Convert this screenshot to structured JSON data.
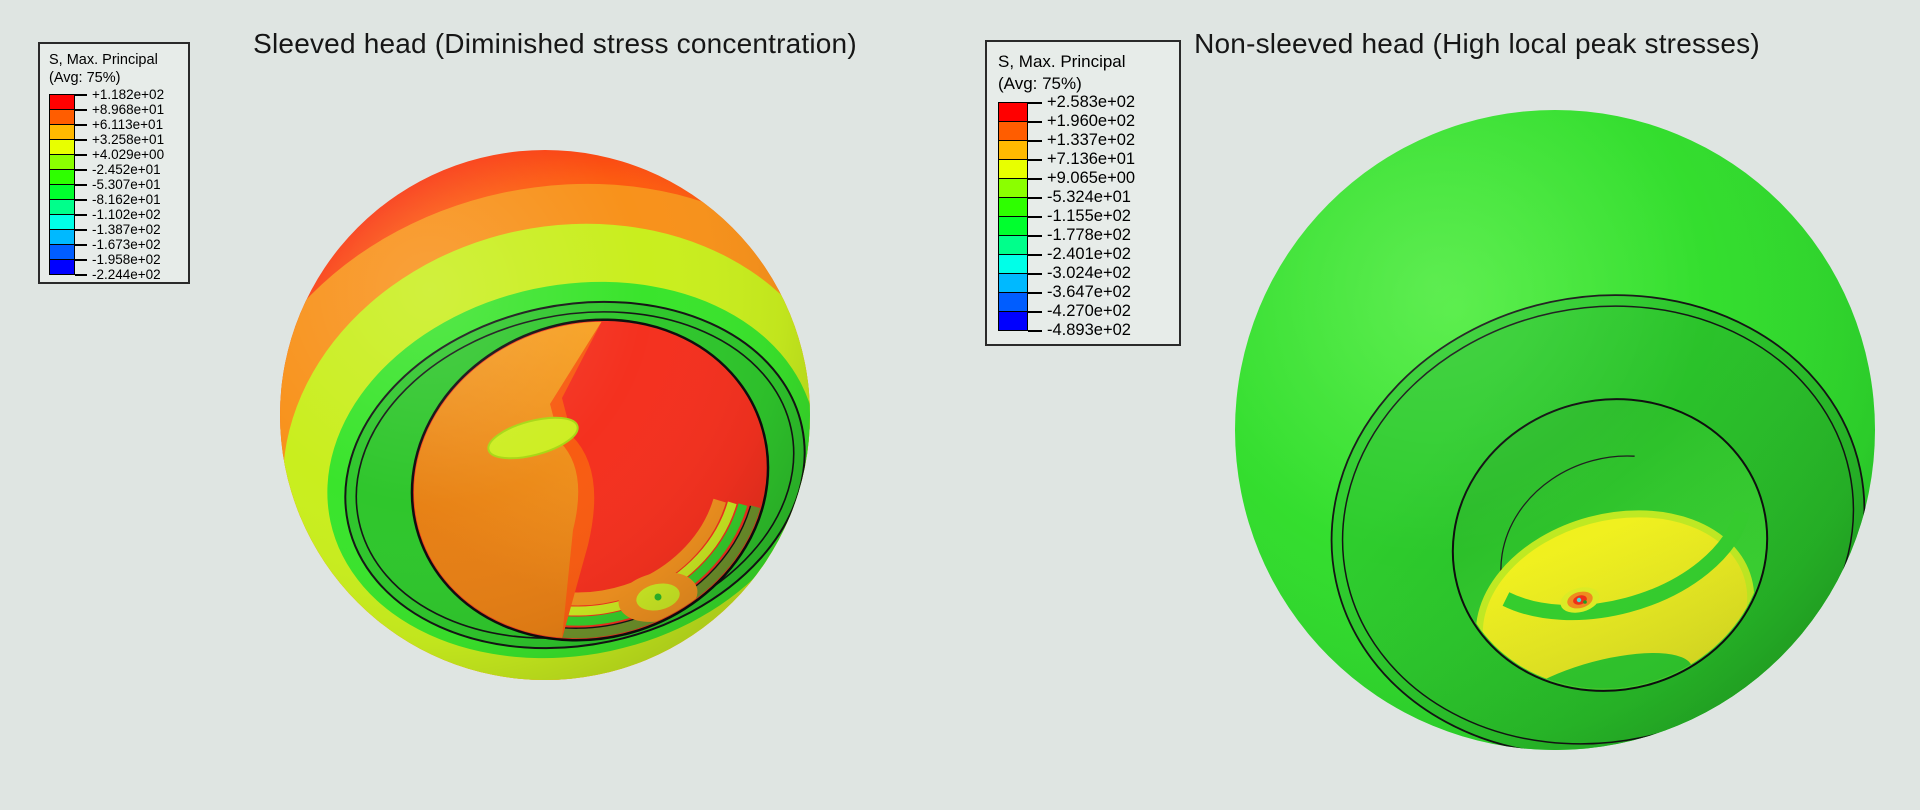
{
  "page": {
    "background_color": "#dfe5e2",
    "description_field": "S, Max. Principal stress contour plots"
  },
  "spectrum": [
    "#ff0000",
    "#ff5d00",
    "#ffb900",
    "#e8ff00",
    "#8bff00",
    "#2eff00",
    "#00ff2e",
    "#00ff8b",
    "#00ffe8",
    "#00b9ff",
    "#005dff",
    "#0000ff"
  ],
  "panels": [
    {
      "title": "Sleeved head (Diminished stress concentration)",
      "legend": {
        "title_line1": "S, Max. Principal",
        "title_line2": "(Avg: 75%)",
        "values": [
          "+1.182e+02",
          "+8.968e+01",
          "+6.113e+01",
          "+3.258e+01",
          "+4.029e+00",
          "-2.452e+01",
          "-5.307e+01",
          "-8.162e+01",
          "-1.102e+02",
          "-1.387e+02",
          "-1.673e+02",
          "-1.958e+02",
          "-2.244e+02"
        ]
      }
    },
    {
      "title": "Non-sleeved head (High local peak stresses)",
      "legend": {
        "title_line1": "S, Max. Principal",
        "title_line2": "(Avg: 75%)",
        "values": [
          "+2.583e+02",
          "+1.960e+02",
          "+1.337e+02",
          "+7.136e+01",
          "+9.065e+00",
          "-5.324e+01",
          "-1.155e+02",
          "-1.778e+02",
          "-2.401e+02",
          "-3.024e+02",
          "-3.647e+02",
          "-4.270e+02",
          "-4.893e+02"
        ]
      }
    }
  ],
  "chart_data": [
    {
      "type": "heatmap",
      "title": "Sleeved head (Diminished stress concentration)",
      "colorbar_title": "S, Max. Principal",
      "colorbar_subtitle": "(Avg: 75%)",
      "colorbar_tick_labels": [
        "+1.182e+02",
        "+8.968e+01",
        "+6.113e+01",
        "+3.258e+01",
        "+4.029e+00",
        "-2.452e+01",
        "-5.307e+01",
        "-8.162e+01",
        "-1.102e+02",
        "-1.387e+02",
        "-1.673e+02",
        "-1.958e+02",
        "-2.244e+02"
      ],
      "colorbar_tick_values": [
        118.2,
        89.68,
        61.13,
        32.58,
        4.029,
        -24.52,
        -53.07,
        -81.62,
        -110.2,
        -138.7,
        -167.3,
        -195.8,
        -224.4
      ],
      "band_colors_top_to_bottom": [
        "#ff0000",
        "#ff5d00",
        "#ffb900",
        "#e8ff00",
        "#8bff00",
        "#2eff00",
        "#00ff2e",
        "#00ff8b",
        "#00ffe8",
        "#00b9ff",
        "#005dff",
        "#0000ff"
      ],
      "value_range": [
        -224.4,
        118.2
      ],
      "legend_position": "top-left"
    },
    {
      "type": "heatmap",
      "title": "Non-sleeved head (High local peak stresses)",
      "colorbar_title": "S, Max. Principal",
      "colorbar_subtitle": "(Avg: 75%)",
      "colorbar_tick_labels": [
        "+2.583e+02",
        "+1.960e+02",
        "+1.337e+02",
        "+7.136e+01",
        "+9.065e+00",
        "-5.324e+01",
        "-1.155e+02",
        "-1.778e+02",
        "-2.401e+02",
        "-3.024e+02",
        "-3.647e+02",
        "-4.270e+02",
        "-4.893e+02"
      ],
      "colorbar_tick_values": [
        258.3,
        196.0,
        133.7,
        71.36,
        9.065,
        -53.24,
        -115.5,
        -177.8,
        -240.1,
        -302.4,
        -364.7,
        -427.0,
        -489.3
      ],
      "band_colors_top_to_bottom": [
        "#ff0000",
        "#ff5d00",
        "#ffb900",
        "#e8ff00",
        "#8bff00",
        "#2eff00",
        "#00ff2e",
        "#00ff8b",
        "#00ffe8",
        "#00b9ff",
        "#005dff",
        "#0000ff"
      ],
      "value_range": [
        -489.3,
        258.3
      ],
      "legend_position": "top-left"
    }
  ]
}
